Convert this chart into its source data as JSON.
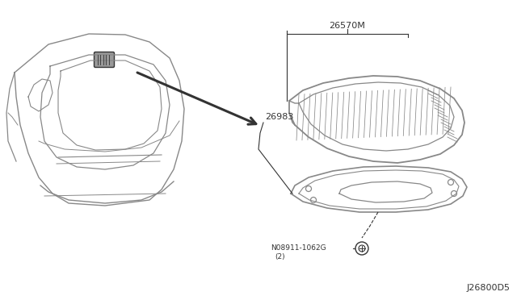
{
  "bg_color": "#ffffff",
  "lc": "#888888",
  "dk": "#333333",
  "gray_fill": "#aaaaaa",
  "diagram_id": "J26800D5",
  "label_26570M": "26570M",
  "label_26983": "26983",
  "label_bolt": "N08911-1062G",
  "label_bolt_qty": "(2)",
  "fig_width": 6.4,
  "fig_height": 3.72,
  "dpi": 100
}
